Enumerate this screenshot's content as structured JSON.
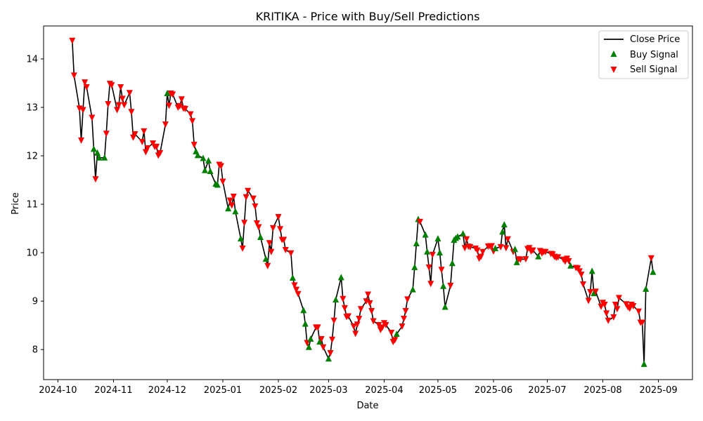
{
  "chart_data": {
    "type": "line",
    "title": "KRITIKA - Price with Buy/Sell Predictions",
    "xlabel": "Date",
    "ylabel": "Price",
    "xlim": [
      "2024-09-23",
      "2025-09-20"
    ],
    "ylim": [
      7.38,
      14.68
    ],
    "grid": false,
    "legend_position": "top-right",
    "x_ticks": [
      "2024-10-01",
      "2024-11-01",
      "2024-12-01",
      "2025-01-01",
      "2025-02-01",
      "2025-03-01",
      "2025-04-01",
      "2025-05-01",
      "2025-06-01",
      "2025-07-01",
      "2025-08-01",
      "2025-09-01"
    ],
    "x_tick_labels": [
      "2024-10",
      "2024-11",
      "2024-12",
      "2025-01",
      "2025-02",
      "2025-03",
      "2025-04",
      "2025-05",
      "2025-06",
      "2025-07",
      "2025-08",
      "2025-09"
    ],
    "y_ticks": [
      8,
      9,
      10,
      11,
      12,
      13,
      14
    ],
    "y_tick_labels": [
      "8",
      "9",
      "10",
      "11",
      "12",
      "13",
      "14"
    ],
    "series": [
      {
        "name": "Close Price",
        "kind": "line",
        "color": "#000000"
      },
      {
        "name": "Buy Signal",
        "kind": "scatter",
        "marker": "triangle-up",
        "color": "#008000"
      },
      {
        "name": "Sell Signal",
        "kind": "scatter",
        "marker": "triangle-down",
        "color": "#ff0000"
      }
    ],
    "points": [
      [
        "2024-10-09",
        14.38,
        "S"
      ],
      [
        "2024-10-10",
        13.66,
        "S"
      ],
      [
        "2024-10-13",
        12.98,
        "S"
      ],
      [
        "2024-10-14",
        12.32,
        "S"
      ],
      [
        "2024-10-15",
        12.95,
        "S"
      ],
      [
        "2024-10-16",
        13.52,
        "S"
      ],
      [
        "2024-10-17",
        13.42,
        "S"
      ],
      [
        "2024-10-20",
        12.79,
        "S"
      ],
      [
        "2024-10-21",
        12.14,
        "B"
      ],
      [
        "2024-10-22",
        11.52,
        "S"
      ],
      [
        "2024-10-23",
        12.06,
        "B"
      ],
      [
        "2024-10-24",
        11.96,
        "B"
      ],
      [
        "2024-10-27",
        11.96,
        "B"
      ],
      [
        "2024-10-28",
        12.46,
        "S"
      ],
      [
        "2024-10-29",
        13.07,
        "S"
      ],
      [
        "2024-10-30",
        13.49,
        "S"
      ],
      [
        "2024-10-31",
        13.46,
        "S"
      ],
      [
        "2024-11-03",
        12.95,
        "S"
      ],
      [
        "2024-11-04",
        13.05,
        "S"
      ],
      [
        "2024-11-05",
        13.42,
        "S"
      ],
      [
        "2024-11-06",
        13.18,
        "S"
      ],
      [
        "2024-11-07",
        13.05,
        "S"
      ],
      [
        "2024-11-10",
        13.3,
        "S"
      ],
      [
        "2024-11-11",
        12.91,
        "S"
      ],
      [
        "2024-11-12",
        12.38,
        "S"
      ],
      [
        "2024-11-13",
        12.45,
        "S"
      ],
      [
        "2024-11-17",
        12.29,
        "S"
      ],
      [
        "2024-11-18",
        12.51,
        "S"
      ],
      [
        "2024-11-19",
        12.08,
        "S"
      ],
      [
        "2024-11-20",
        12.16,
        "S"
      ],
      [
        "2024-11-23",
        12.26,
        "S"
      ],
      [
        "2024-11-24",
        12.19,
        "S"
      ],
      [
        "2024-11-25",
        12.19,
        "S"
      ],
      [
        "2024-11-26",
        12.01,
        "S"
      ],
      [
        "2024-11-27",
        12.06,
        "S"
      ],
      [
        "2024-11-30",
        12.65,
        "S"
      ],
      [
        "2024-12-01",
        13.29,
        "B"
      ],
      [
        "2024-12-02",
        13.04,
        "S"
      ],
      [
        "2024-12-03",
        13.29,
        "S"
      ],
      [
        "2024-12-04",
        13.27,
        "S"
      ],
      [
        "2024-12-07",
        13.0,
        "S"
      ],
      [
        "2024-12-08",
        13.03,
        "S"
      ],
      [
        "2024-12-09",
        13.17,
        "S"
      ],
      [
        "2024-12-10",
        12.98,
        "S"
      ],
      [
        "2024-12-11",
        12.97,
        "S"
      ],
      [
        "2024-12-14",
        12.86,
        "S"
      ],
      [
        "2024-12-15",
        12.72,
        "S"
      ],
      [
        "2024-12-16",
        12.23,
        "S"
      ],
      [
        "2024-12-17",
        12.09,
        "B"
      ],
      [
        "2024-12-18",
        12.01,
        "B"
      ],
      [
        "2024-12-21",
        11.95,
        "B"
      ],
      [
        "2024-12-22",
        11.7,
        "B"
      ],
      [
        "2024-12-24",
        11.9,
        "B"
      ],
      [
        "2024-12-25",
        11.68,
        "B"
      ],
      [
        "2024-12-28",
        11.42,
        "B"
      ],
      [
        "2024-12-29",
        11.4,
        "B"
      ],
      [
        "2024-12-30",
        11.82,
        "S"
      ],
      [
        "2024-12-31",
        11.79,
        "S"
      ],
      [
        "2025-01-01",
        11.47,
        "S"
      ],
      [
        "2025-01-04",
        10.91,
        "B"
      ],
      [
        "2025-01-05",
        11.08,
        "S"
      ],
      [
        "2025-01-06",
        10.98,
        "S"
      ],
      [
        "2025-01-07",
        11.16,
        "S"
      ],
      [
        "2025-01-08",
        10.85,
        "B"
      ],
      [
        "2025-01-11",
        10.29,
        "B"
      ],
      [
        "2025-01-12",
        10.09,
        "S"
      ],
      [
        "2025-01-13",
        10.62,
        "S"
      ],
      [
        "2025-01-14",
        11.15,
        "S"
      ],
      [
        "2025-01-15",
        11.28,
        "S"
      ],
      [
        "2025-01-18",
        11.12,
        "S"
      ],
      [
        "2025-01-19",
        10.96,
        "S"
      ],
      [
        "2025-01-20",
        10.61,
        "S"
      ],
      [
        "2025-01-21",
        10.53,
        "S"
      ],
      [
        "2025-01-22",
        10.32,
        "B"
      ],
      [
        "2025-01-25",
        9.87,
        "B"
      ],
      [
        "2025-01-26",
        9.73,
        "S"
      ],
      [
        "2025-01-27",
        10.2,
        "S"
      ],
      [
        "2025-01-28",
        10.02,
        "S"
      ],
      [
        "2025-01-29",
        10.51,
        "S"
      ],
      [
        "2025-02-01",
        10.74,
        "S"
      ],
      [
        "2025-02-02",
        10.49,
        "S"
      ],
      [
        "2025-02-03",
        10.27,
        "S"
      ],
      [
        "2025-02-04",
        10.27,
        "S"
      ],
      [
        "2025-02-05",
        10.06,
        "S"
      ],
      [
        "2025-02-08",
        9.99,
        "S"
      ],
      [
        "2025-02-09",
        9.48,
        "B"
      ],
      [
        "2025-02-10",
        9.33,
        "S"
      ],
      [
        "2025-02-11",
        9.24,
        "S"
      ],
      [
        "2025-02-12",
        9.15,
        "S"
      ],
      [
        "2025-02-15",
        8.81,
        "B"
      ],
      [
        "2025-02-16",
        8.53,
        "B"
      ],
      [
        "2025-02-17",
        8.14,
        "S"
      ],
      [
        "2025-02-18",
        8.05,
        "B"
      ],
      [
        "2025-02-19",
        8.22,
        "B"
      ],
      [
        "2025-02-22",
        8.46,
        "S"
      ],
      [
        "2025-02-23",
        8.46,
        "S"
      ],
      [
        "2025-02-24",
        8.16,
        "B"
      ],
      [
        "2025-02-25",
        8.22,
        "S"
      ],
      [
        "2025-02-26",
        8.05,
        "S"
      ],
      [
        "2025-03-01",
        7.81,
        "B"
      ],
      [
        "2025-03-02",
        7.93,
        "S"
      ],
      [
        "2025-03-03",
        8.21,
        "S"
      ],
      [
        "2025-03-04",
        8.6,
        "S"
      ],
      [
        "2025-03-05",
        9.03,
        "B"
      ],
      [
        "2025-03-08",
        9.49,
        "B"
      ],
      [
        "2025-03-09",
        9.05,
        "S"
      ],
      [
        "2025-03-10",
        8.86,
        "S"
      ],
      [
        "2025-03-11",
        8.68,
        "S"
      ],
      [
        "2025-03-12",
        8.69,
        "S"
      ],
      [
        "2025-03-15",
        8.48,
        "S"
      ],
      [
        "2025-03-16",
        8.33,
        "S"
      ],
      [
        "2025-03-17",
        8.52,
        "S"
      ],
      [
        "2025-03-18",
        8.64,
        "S"
      ],
      [
        "2025-03-19",
        8.84,
        "S"
      ],
      [
        "2025-03-22",
        9.0,
        "S"
      ],
      [
        "2025-03-23",
        9.14,
        "S"
      ],
      [
        "2025-03-24",
        8.96,
        "S"
      ],
      [
        "2025-03-25",
        8.8,
        "S"
      ],
      [
        "2025-03-26",
        8.59,
        "S"
      ],
      [
        "2025-03-29",
        8.51,
        "S"
      ],
      [
        "2025-03-30",
        8.41,
        "S"
      ],
      [
        "2025-03-31",
        8.46,
        "S"
      ],
      [
        "2025-04-01",
        8.55,
        "S"
      ],
      [
        "2025-04-02",
        8.51,
        "S"
      ],
      [
        "2025-04-05",
        8.35,
        "S"
      ],
      [
        "2025-04-06",
        8.16,
        "S"
      ],
      [
        "2025-04-07",
        8.2,
        "S"
      ],
      [
        "2025-04-08",
        8.32,
        "B"
      ],
      [
        "2025-04-11",
        8.48,
        "S"
      ],
      [
        "2025-04-12",
        8.64,
        "S"
      ],
      [
        "2025-04-13",
        8.8,
        "S"
      ],
      [
        "2025-04-14",
        9.04,
        "S"
      ],
      [
        "2025-04-17",
        9.24,
        "B"
      ],
      [
        "2025-04-18",
        9.7,
        "B"
      ],
      [
        "2025-04-19",
        10.19,
        "B"
      ],
      [
        "2025-04-20",
        10.69,
        "B"
      ],
      [
        "2025-04-21",
        10.64,
        "S"
      ],
      [
        "2025-04-24",
        10.37,
        "B"
      ],
      [
        "2025-04-25",
        10.02,
        "B"
      ],
      [
        "2025-04-26",
        9.7,
        "S"
      ],
      [
        "2025-04-27",
        9.36,
        "S"
      ],
      [
        "2025-04-28",
        9.96,
        "S"
      ],
      [
        "2025-05-01",
        10.29,
        "B"
      ],
      [
        "2025-05-02",
        10.0,
        "B"
      ],
      [
        "2025-05-03",
        9.65,
        "S"
      ],
      [
        "2025-05-04",
        9.31,
        "B"
      ],
      [
        "2025-05-05",
        8.88,
        "B"
      ],
      [
        "2025-05-08",
        9.32,
        "S"
      ],
      [
        "2025-05-09",
        9.78,
        "B"
      ],
      [
        "2025-05-10",
        10.26,
        "B"
      ],
      [
        "2025-05-11",
        10.3,
        "B"
      ],
      [
        "2025-05-12",
        10.33,
        "B"
      ],
      [
        "2025-05-15",
        10.39,
        "B"
      ],
      [
        "2025-05-16",
        10.1,
        "S"
      ],
      [
        "2025-05-17",
        10.28,
        "S"
      ],
      [
        "2025-05-18",
        10.13,
        "S"
      ],
      [
        "2025-05-19",
        10.12,
        "S"
      ],
      [
        "2025-05-22",
        10.09,
        "S"
      ],
      [
        "2025-05-23",
        10.05,
        "S"
      ],
      [
        "2025-05-24",
        9.88,
        "S"
      ],
      [
        "2025-05-25",
        9.92,
        "S"
      ],
      [
        "2025-05-26",
        10.02,
        "S"
      ],
      [
        "2025-05-29",
        10.13,
        "S"
      ],
      [
        "2025-05-30",
        10.14,
        "S"
      ],
      [
        "2025-05-31",
        10.14,
        "S"
      ],
      [
        "2025-06-01",
        10.03,
        "S"
      ],
      [
        "2025-06-02",
        10.09,
        "B"
      ],
      [
        "2025-06-05",
        10.12,
        "S"
      ],
      [
        "2025-06-06",
        10.43,
        "B"
      ],
      [
        "2025-06-07",
        10.58,
        "B"
      ],
      [
        "2025-06-08",
        10.1,
        "S"
      ],
      [
        "2025-06-09",
        10.28,
        "S"
      ],
      [
        "2025-06-12",
        10.02,
        "S"
      ],
      [
        "2025-06-13",
        10.07,
        "B"
      ],
      [
        "2025-06-14",
        9.8,
        "B"
      ],
      [
        "2025-06-15",
        9.87,
        "S"
      ],
      [
        "2025-06-16",
        9.86,
        "S"
      ],
      [
        "2025-06-19",
        9.87,
        "S"
      ],
      [
        "2025-06-20",
        10.08,
        "S"
      ],
      [
        "2025-06-21",
        10.1,
        "S"
      ],
      [
        "2025-06-22",
        10.03,
        "S"
      ],
      [
        "2025-06-23",
        10.05,
        "S"
      ],
      [
        "2025-06-26",
        9.92,
        "B"
      ],
      [
        "2025-06-27",
        10.04,
        "S"
      ],
      [
        "2025-06-28",
        9.99,
        "S"
      ],
      [
        "2025-06-29",
        10.02,
        "S"
      ],
      [
        "2025-06-30",
        10.02,
        "S"
      ],
      [
        "2025-07-03",
        9.98,
        "S"
      ],
      [
        "2025-07-04",
        9.97,
        "S"
      ],
      [
        "2025-07-05",
        9.92,
        "S"
      ],
      [
        "2025-07-06",
        9.9,
        "S"
      ],
      [
        "2025-07-07",
        9.91,
        "S"
      ],
      [
        "2025-07-10",
        9.86,
        "S"
      ],
      [
        "2025-07-11",
        9.82,
        "S"
      ],
      [
        "2025-07-12",
        9.88,
        "S"
      ],
      [
        "2025-07-13",
        9.83,
        "S"
      ],
      [
        "2025-07-14",
        9.73,
        "B"
      ],
      [
        "2025-07-17",
        9.69,
        "S"
      ],
      [
        "2025-07-18",
        9.68,
        "S"
      ],
      [
        "2025-07-19",
        9.62,
        "S"
      ],
      [
        "2025-07-20",
        9.55,
        "S"
      ],
      [
        "2025-07-21",
        9.35,
        "S"
      ],
      [
        "2025-07-24",
        9.01,
        "S"
      ],
      [
        "2025-07-25",
        9.19,
        "S"
      ],
      [
        "2025-07-26",
        9.62,
        "B"
      ],
      [
        "2025-07-27",
        9.16,
        "B"
      ],
      [
        "2025-07-28",
        9.2,
        "S"
      ],
      [
        "2025-07-31",
        8.89,
        "S"
      ],
      [
        "2025-08-01",
        8.97,
        "S"
      ],
      [
        "2025-08-02",
        8.93,
        "S"
      ],
      [
        "2025-08-03",
        8.75,
        "S"
      ],
      [
        "2025-08-04",
        8.6,
        "S"
      ],
      [
        "2025-08-07",
        8.67,
        "S"
      ],
      [
        "2025-08-08",
        8.93,
        "S"
      ],
      [
        "2025-08-09",
        8.84,
        "S"
      ],
      [
        "2025-08-10",
        9.07,
        "S"
      ],
      [
        "2025-08-14",
        8.94,
        "S"
      ],
      [
        "2025-08-15",
        8.88,
        "S"
      ],
      [
        "2025-08-16",
        8.85,
        "S"
      ],
      [
        "2025-08-17",
        8.93,
        "S"
      ],
      [
        "2025-08-18",
        8.9,
        "S"
      ],
      [
        "2025-08-21",
        8.79,
        "S"
      ],
      [
        "2025-08-22",
        8.56,
        "S"
      ],
      [
        "2025-08-23",
        8.56,
        "S"
      ],
      [
        "2025-08-24",
        7.7,
        "B"
      ],
      [
        "2025-08-25",
        9.25,
        "B"
      ],
      [
        "2025-08-28",
        9.89,
        "S"
      ],
      [
        "2025-08-29",
        9.6,
        "B"
      ]
    ]
  }
}
